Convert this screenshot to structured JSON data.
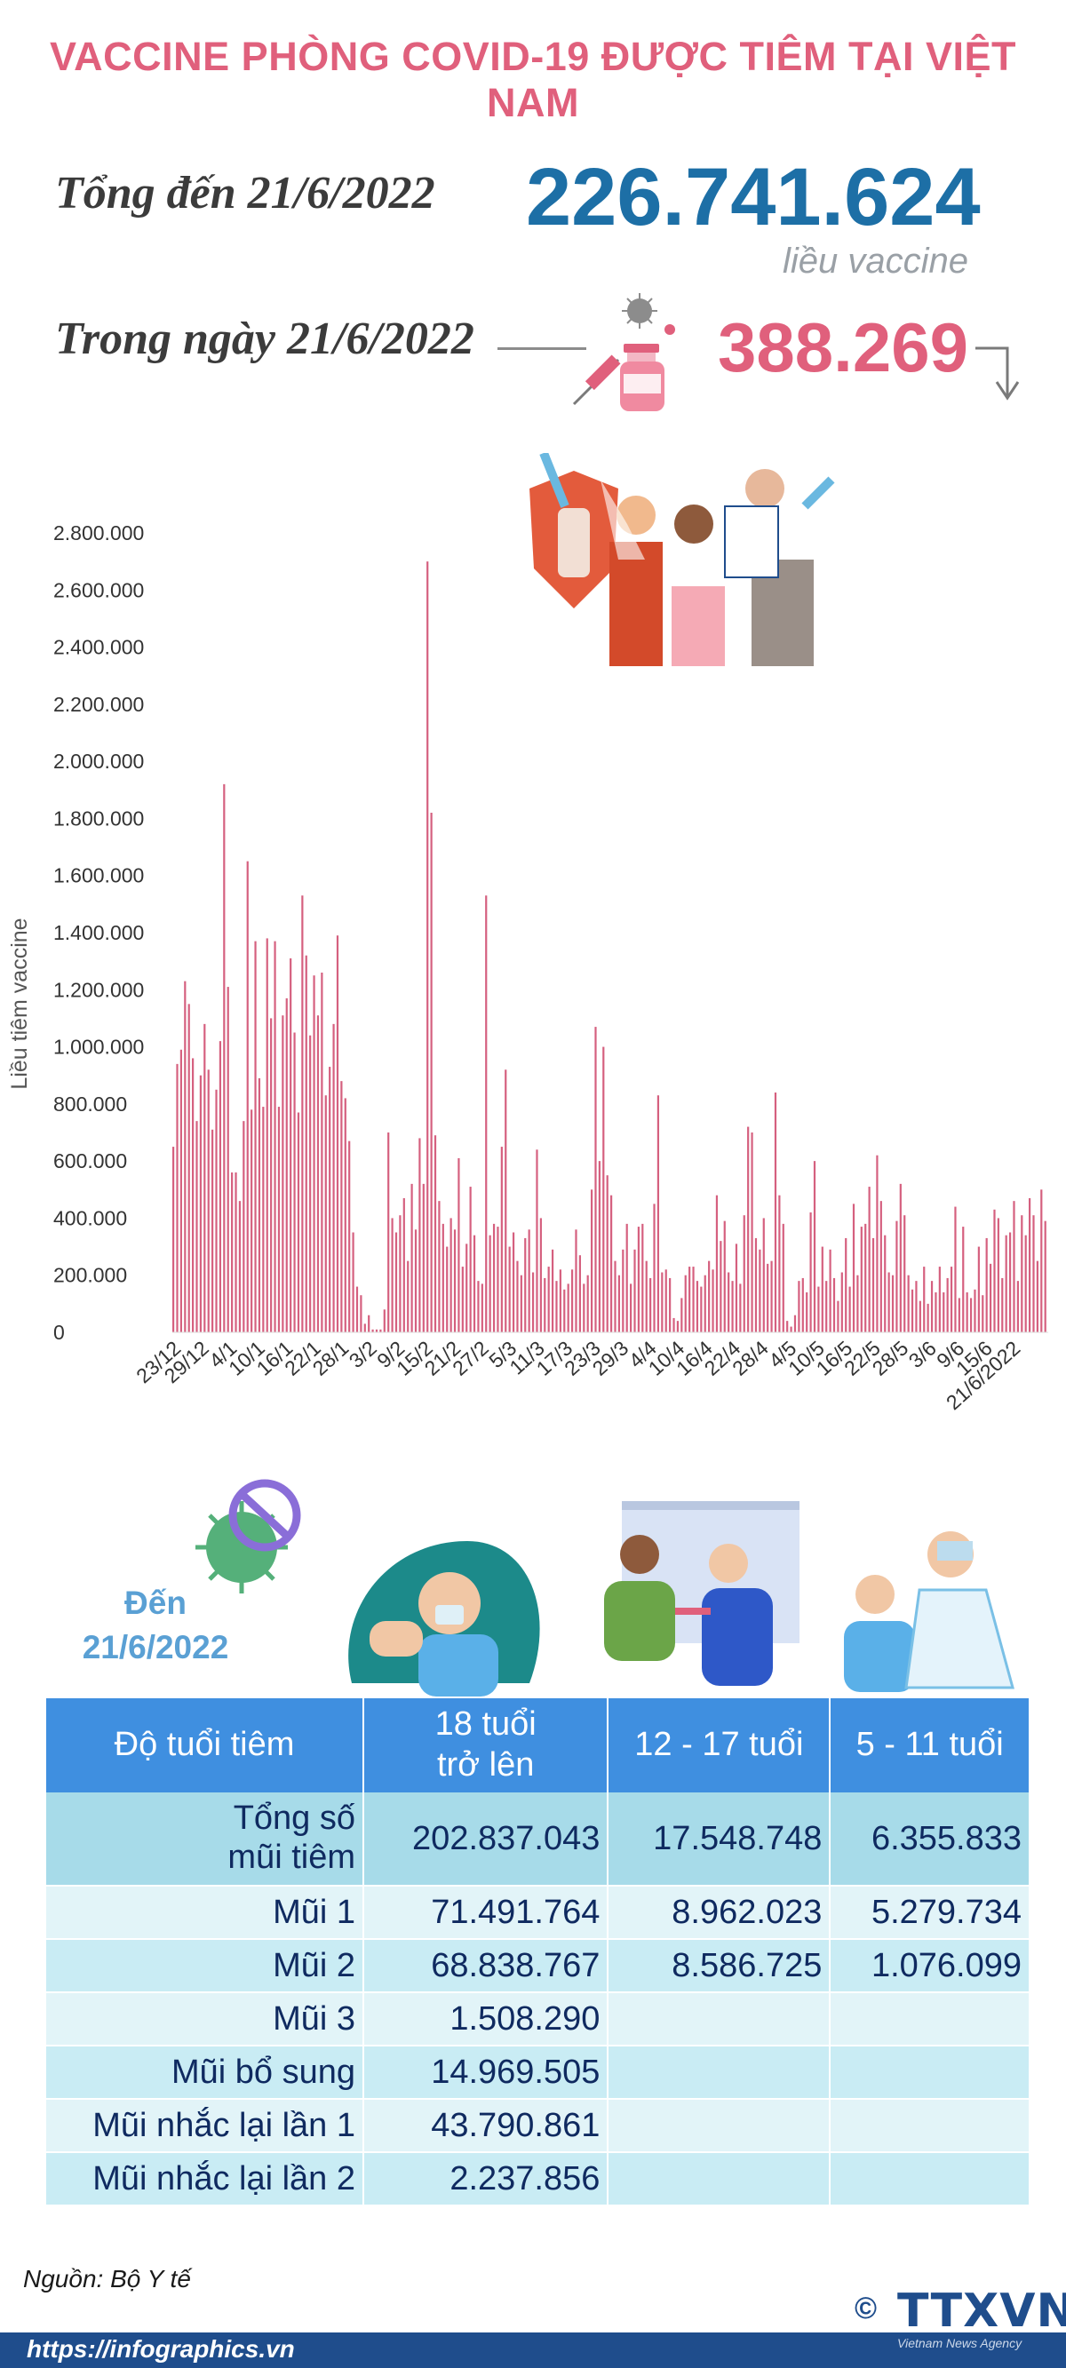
{
  "header": {
    "title": "VACCINE PHÒNG COVID-19 ĐƯỢC TIÊM TẠI VIỆT NAM",
    "total_label": "Tổng đến 21/6/2022",
    "total_value": "226.741.624",
    "total_unit": "liều vaccine",
    "day_label": "Trong ngày 21/6/2022",
    "day_value": "388.269"
  },
  "chart_data": {
    "type": "bar",
    "ylabel": "Liều tiêm vaccine",
    "ylim": [
      0,
      2800000
    ],
    "yticks": [
      "2.800.000",
      "2.600.000",
      "2.400.000",
      "2.200.000",
      "2.000.000",
      "1.800.000",
      "1.600.000",
      "1.400.000",
      "1.200.000",
      "1.000.000",
      "800.000",
      "600.000",
      "400.000",
      "200.000",
      "0"
    ],
    "x_tick_labels": [
      "23/12",
      "29/12",
      "4/1",
      "10/1",
      "16/1",
      "22/1",
      "28/1",
      "3/2",
      "9/2",
      "15/2",
      "21/2",
      "27/2",
      "5/3",
      "11/3",
      "17/3",
      "23/3",
      "29/3",
      "4/4",
      "10/4",
      "16/4",
      "22/4",
      "28/4",
      "4/5",
      "10/5",
      "16/5",
      "22/5",
      "28/5",
      "3/6",
      "9/6",
      "15/6",
      "21/6/2022"
    ],
    "color": "#d5607f",
    "values": [
      650000,
      940000,
      990000,
      1230000,
      1150000,
      960000,
      740000,
      900000,
      1080000,
      920000,
      710000,
      850000,
      1020000,
      1920000,
      1210000,
      560000,
      560000,
      460000,
      740000,
      1650000,
      780000,
      1370000,
      890000,
      790000,
      1380000,
      1100000,
      1370000,
      790000,
      1110000,
      1170000,
      1310000,
      1050000,
      770000,
      1530000,
      1320000,
      1040000,
      1250000,
      1110000,
      1260000,
      830000,
      930000,
      1080000,
      1390000,
      880000,
      820000,
      670000,
      350000,
      160000,
      130000,
      30000,
      60000,
      10000,
      10000,
      10000,
      80000,
      700000,
      400000,
      350000,
      410000,
      470000,
      250000,
      520000,
      360000,
      680000,
      520000,
      2700000,
      1820000,
      690000,
      460000,
      380000,
      300000,
      400000,
      360000,
      610000,
      230000,
      310000,
      510000,
      340000,
      180000,
      170000,
      1530000,
      340000,
      380000,
      370000,
      650000,
      920000,
      300000,
      350000,
      250000,
      200000,
      330000,
      360000,
      210000,
      640000,
      400000,
      190000,
      230000,
      290000,
      180000,
      220000,
      150000,
      170000,
      220000,
      360000,
      270000,
      170000,
      200000,
      500000,
      1070000,
      600000,
      1000000,
      550000,
      480000,
      250000,
      200000,
      290000,
      380000,
      170000,
      290000,
      370000,
      380000,
      250000,
      190000,
      450000,
      830000,
      210000,
      220000,
      190000,
      50000,
      40000,
      120000,
      200000,
      230000,
      230000,
      180000,
      160000,
      200000,
      250000,
      220000,
      480000,
      320000,
      390000,
      210000,
      180000,
      310000,
      170000,
      410000,
      720000,
      700000,
      330000,
      290000,
      400000,
      240000,
      250000,
      840000,
      480000,
      380000,
      40000,
      20000,
      60000,
      180000,
      190000,
      140000,
      420000,
      600000,
      160000,
      300000,
      180000,
      290000,
      190000,
      110000,
      210000,
      330000,
      160000,
      450000,
      200000,
      370000,
      380000,
      510000,
      330000,
      620000,
      460000,
      340000,
      210000,
      200000,
      390000,
      520000,
      410000,
      200000,
      150000,
      180000,
      110000,
      230000,
      100000,
      180000,
      140000,
      230000,
      140000,
      190000,
      230000,
      440000,
      120000,
      370000,
      140000,
      120000,
      150000,
      300000,
      130000,
      330000,
      240000,
      430000,
      400000,
      190000,
      340000,
      350000,
      460000,
      180000,
      410000,
      340000,
      470000,
      410000,
      250000,
      500000,
      390000
    ]
  },
  "asof_label": "Đến\n21/6/2022",
  "table": {
    "headers": [
      "Độ tuổi tiêm",
      "18 tuổi\ntrở lên",
      "12 - 17 tuổi",
      "5 - 11 tuổi"
    ],
    "rows": [
      {
        "label": "Tổng số\nmũi tiêm",
        "values": [
          "202.837.043",
          "17.548.748",
          "6.355.833"
        ]
      },
      {
        "label": "Mũi 1",
        "values": [
          "71.491.764",
          "8.962.023",
          "5.279.734"
        ]
      },
      {
        "label": "Mũi 2",
        "values": [
          "68.838.767",
          "8.586.725",
          "1.076.099"
        ]
      },
      {
        "label": "Mũi 3",
        "values": [
          "1.508.290",
          "",
          ""
        ]
      },
      {
        "label": "Mũi bổ sung",
        "values": [
          "14.969.505",
          "",
          ""
        ]
      },
      {
        "label": "Mũi nhắc lại lần 1",
        "values": [
          "43.790.861",
          "",
          ""
        ]
      },
      {
        "label": "Mũi nhắc lại lần 2",
        "values": [
          "2.237.856",
          "",
          ""
        ]
      }
    ]
  },
  "footer": {
    "source": "Nguồn: Bộ Y tế",
    "url": "https://infographics.vn",
    "copyright": "©",
    "logo": "TTXVN",
    "logo_sub": "Vietnam News Agency"
  },
  "icons": [
    "syringe-icon",
    "vaccine-vial-icon",
    "virus-icon",
    "no-virus-icon",
    "down-arrow-icon",
    "shield-icon",
    "people-illustration",
    "arm-bandage-illustration",
    "vaccination-illustration",
    "child-vaccination-illustration"
  ]
}
